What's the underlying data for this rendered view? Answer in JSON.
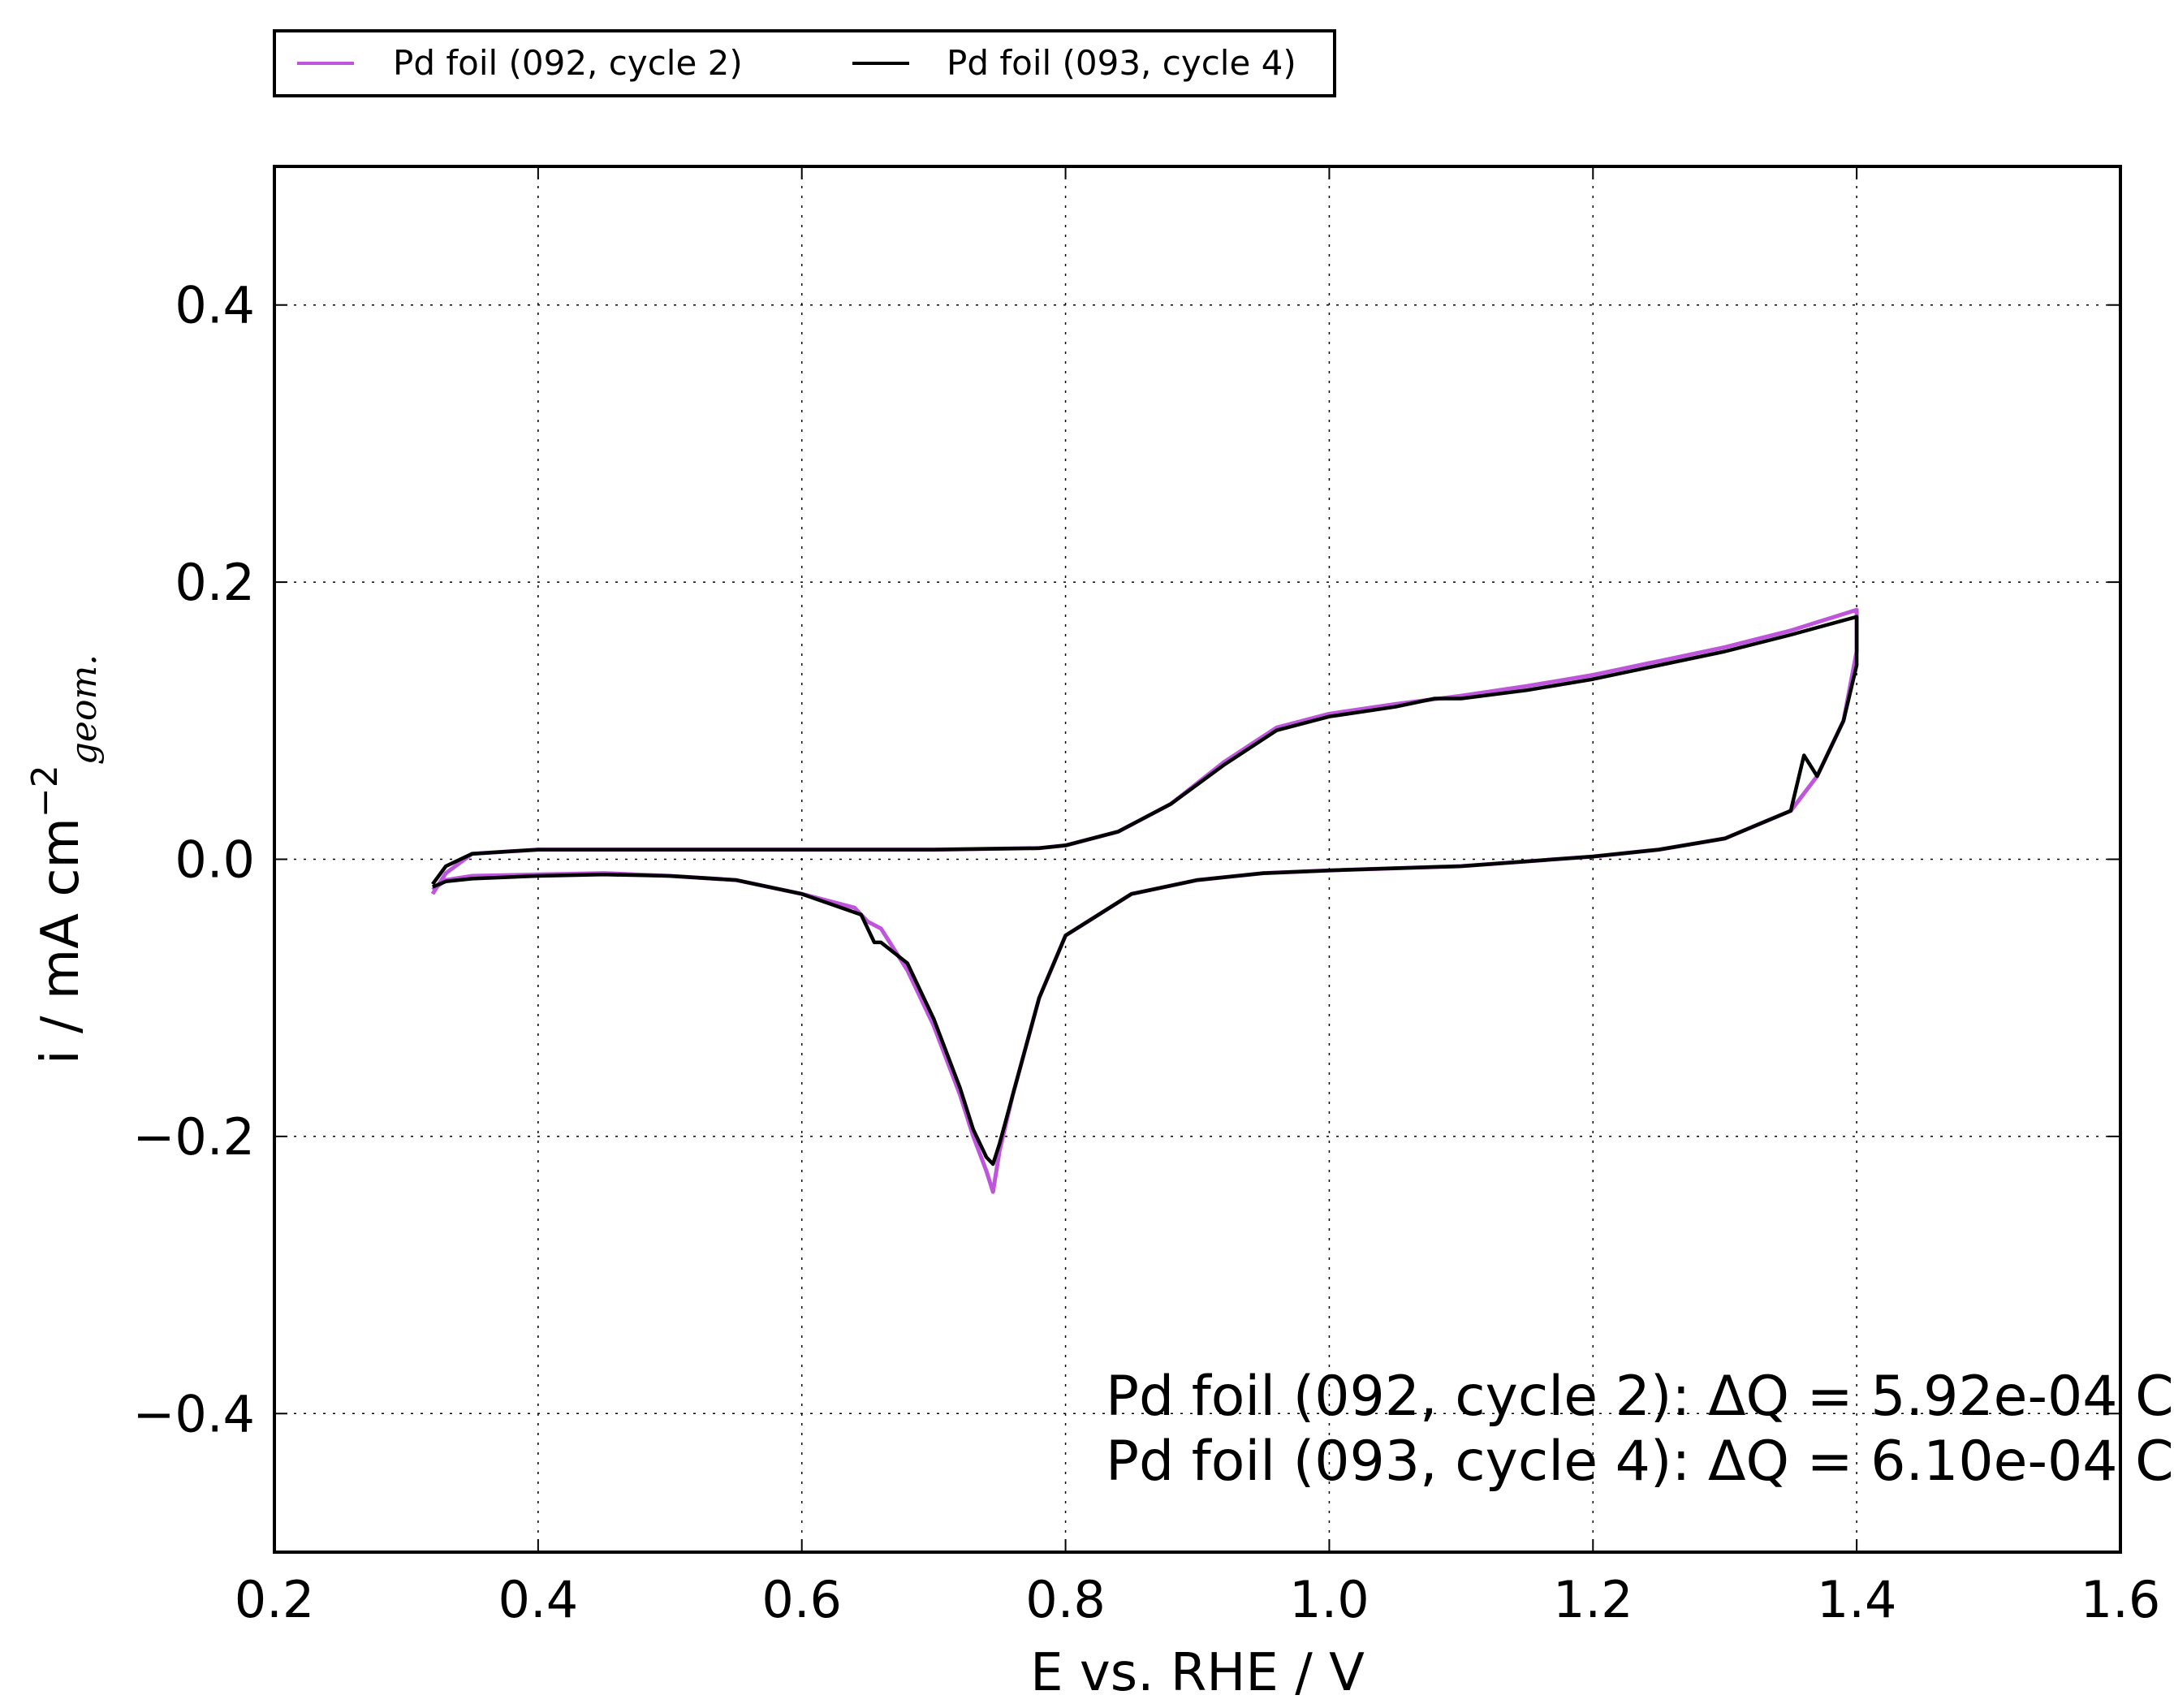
{
  "chart_data": {
    "type": "line",
    "title": "",
    "xlabel": "E vs. RHE / V",
    "ylabel": {
      "main": "i / mA cm",
      "sup": "−2",
      "sub": "geom."
    },
    "xlim": [
      0.2,
      1.6
    ],
    "ylim": [
      -0.5,
      0.5
    ],
    "xticks": [
      0.2,
      0.4,
      0.6,
      0.8,
      1.0,
      1.2,
      1.4,
      1.6
    ],
    "xtick_labels": [
      "0.2",
      "0.4",
      "0.6",
      "0.8",
      "1.0",
      "1.2",
      "1.4",
      "1.6"
    ],
    "yticks": [
      -0.4,
      -0.2,
      0.0,
      0.2,
      0.4
    ],
    "ytick_labels": [
      "−0.4",
      "−0.2",
      "0.0",
      "0.2",
      "0.4"
    ],
    "grid": true,
    "legend_position": "top-left, above plot",
    "annotations": [
      "Pd foil (092, cycle 2): ΔQ = 5.92e-04 C",
      "Pd foil (093, cycle 4): ΔQ = 6.10e-04 C"
    ],
    "series": [
      {
        "name": "Pd foil (092, cycle 2)",
        "color": "#bf55dd",
        "x": [
          0.32,
          0.33,
          0.35,
          0.4,
          0.5,
          0.6,
          0.7,
          0.78,
          0.8,
          0.84,
          0.88,
          0.92,
          0.96,
          1.0,
          1.05,
          1.1,
          1.15,
          1.2,
          1.25,
          1.3,
          1.35,
          1.4,
          1.4,
          1.39,
          1.37,
          1.35,
          1.3,
          1.25,
          1.2,
          1.1,
          1.0,
          0.95,
          0.9,
          0.85,
          0.8,
          0.78,
          0.76,
          0.75,
          0.745,
          0.74,
          0.73,
          0.72,
          0.7,
          0.68,
          0.66,
          0.65,
          0.64,
          0.6,
          0.55,
          0.5,
          0.45,
          0.4,
          0.35,
          0.33,
          0.32
        ],
        "y": [
          -0.025,
          -0.01,
          0.004,
          0.007,
          0.007,
          0.007,
          0.007,
          0.008,
          0.01,
          0.02,
          0.04,
          0.07,
          0.095,
          0.105,
          0.112,
          0.118,
          0.125,
          0.133,
          0.143,
          0.153,
          0.165,
          0.18,
          0.15,
          0.1,
          0.06,
          0.035,
          0.015,
          0.007,
          0.002,
          -0.005,
          -0.008,
          -0.01,
          -0.015,
          -0.025,
          -0.055,
          -0.1,
          -0.17,
          -0.21,
          -0.24,
          -0.225,
          -0.2,
          -0.17,
          -0.12,
          -0.08,
          -0.05,
          -0.045,
          -0.035,
          -0.025,
          -0.015,
          -0.012,
          -0.01,
          -0.011,
          -0.012,
          -0.015,
          -0.022
        ]
      },
      {
        "name": "Pd foil (093, cycle 4)",
        "color": "#000000",
        "x": [
          0.32,
          0.33,
          0.35,
          0.4,
          0.5,
          0.6,
          0.7,
          0.78,
          0.8,
          0.84,
          0.88,
          0.92,
          0.96,
          1.0,
          1.05,
          1.08,
          1.1,
          1.15,
          1.2,
          1.25,
          1.3,
          1.35,
          1.4,
          1.4,
          1.39,
          1.37,
          1.36,
          1.35,
          1.3,
          1.25,
          1.2,
          1.1,
          1.0,
          0.95,
          0.9,
          0.85,
          0.8,
          0.78,
          0.76,
          0.75,
          0.745,
          0.74,
          0.73,
          0.72,
          0.7,
          0.68,
          0.66,
          0.655,
          0.645,
          0.6,
          0.55,
          0.5,
          0.45,
          0.4,
          0.35,
          0.33,
          0.32
        ],
        "y": [
          -0.018,
          -0.005,
          0.004,
          0.007,
          0.007,
          0.007,
          0.007,
          0.008,
          0.01,
          0.02,
          0.04,
          0.068,
          0.093,
          0.103,
          0.11,
          0.116,
          0.116,
          0.122,
          0.13,
          0.14,
          0.15,
          0.162,
          0.175,
          0.14,
          0.1,
          0.06,
          0.075,
          0.035,
          0.015,
          0.007,
          0.002,
          -0.005,
          -0.008,
          -0.01,
          -0.015,
          -0.025,
          -0.055,
          -0.1,
          -0.17,
          -0.205,
          -0.22,
          -0.215,
          -0.195,
          -0.165,
          -0.115,
          -0.075,
          -0.06,
          -0.06,
          -0.04,
          -0.025,
          -0.015,
          -0.012,
          -0.011,
          -0.012,
          -0.014,
          -0.016,
          -0.02
        ]
      }
    ]
  }
}
